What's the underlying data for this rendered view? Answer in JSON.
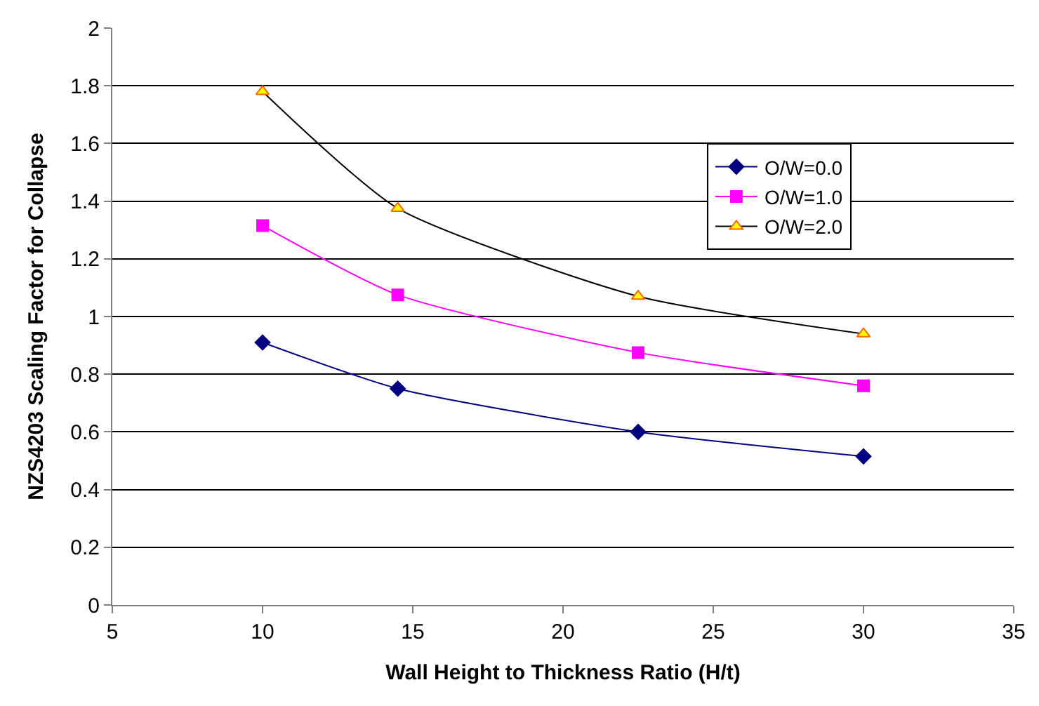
{
  "chart_data": {
    "type": "line",
    "xlabel": "Wall Height to Thickness Ratio (H/t)",
    "ylabel": "NZS4203 Scaling Factor for Collapse",
    "x": [
      10,
      14.5,
      22.5,
      30
    ],
    "series": [
      {
        "name": "O/W=0.0",
        "color": "#000080",
        "marker": "diamond",
        "values": [
          0.91,
          0.75,
          0.6,
          0.515
        ]
      },
      {
        "name": "O/W=1.0",
        "color": "#ff00ff",
        "marker": "square",
        "values": [
          1.315,
          1.075,
          0.875,
          0.76
        ]
      },
      {
        "name": "O/W=2.0",
        "color": "#000000",
        "marker": "triangle",
        "colors": [
          "#ffff00",
          "#ffff00",
          "#ffff00",
          "#ffff00"
        ],
        "values": [
          1.78,
          1.375,
          1.07,
          0.94
        ]
      }
    ],
    "xlim": [
      5,
      35
    ],
    "xticks": [
      5,
      10,
      15,
      20,
      25,
      30,
      35
    ],
    "ylim": [
      0,
      2
    ],
    "yticks": [
      0,
      0.2,
      0.4,
      0.6,
      0.8,
      1,
      1.2,
      1.4,
      1.6,
      1.8,
      2
    ],
    "grid": "y",
    "legend": "top right"
  }
}
